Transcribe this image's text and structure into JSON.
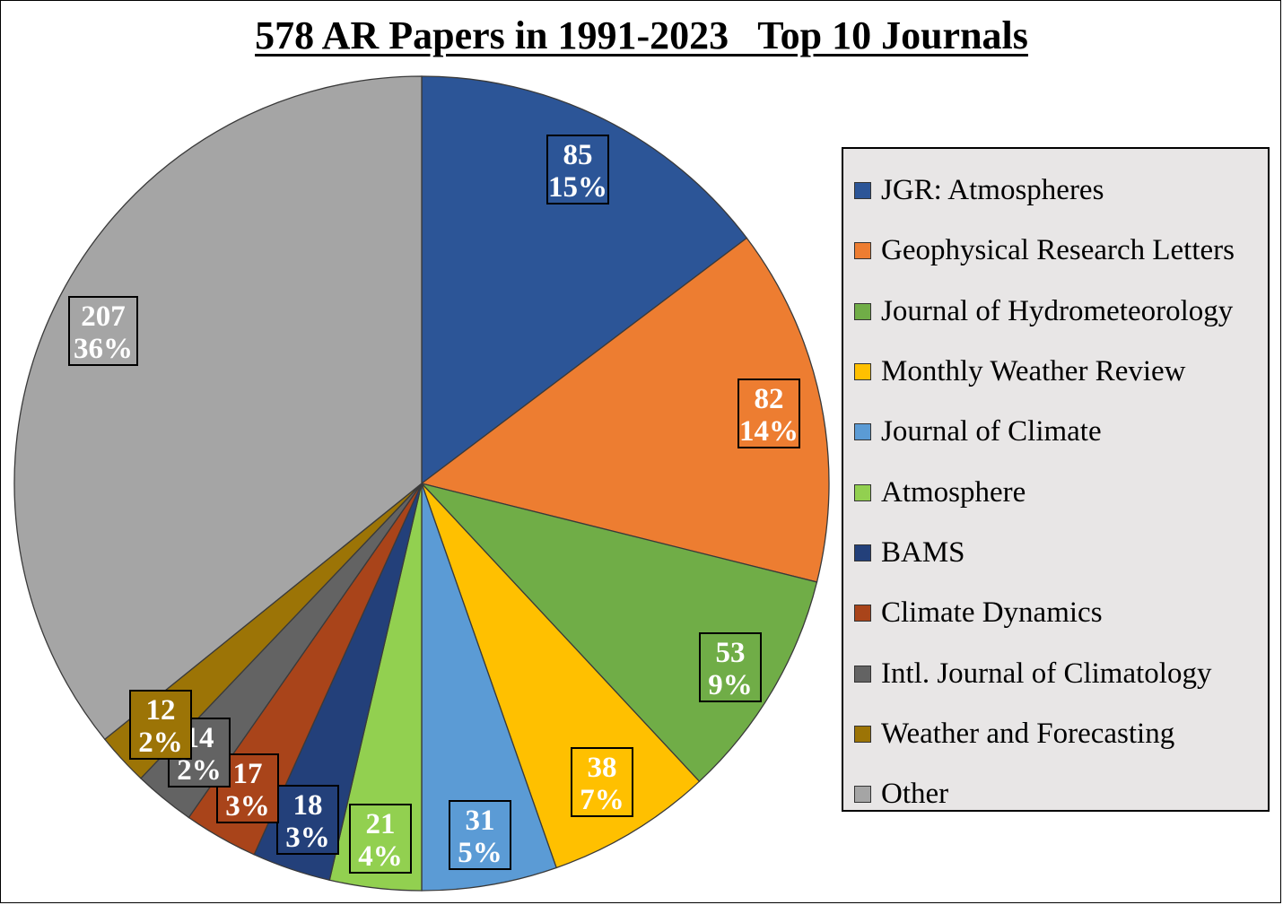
{
  "chart_data": {
    "type": "pie",
    "title": "578 AR Papers in 1991-2023   Top 10 Journals",
    "legend_position": "right",
    "slices": [
      {
        "label": "JGR: Atmospheres",
        "value": 85,
        "percent": "15%",
        "color": "#2c5597"
      },
      {
        "label": "Geophysical Research Letters",
        "value": 82,
        "percent": "14%",
        "color": "#ed7d31"
      },
      {
        "label": "Journal of Hydrometeorology",
        "value": 53,
        "percent": "9%",
        "color": "#70ad47"
      },
      {
        "label": "Monthly Weather Review",
        "value": 38,
        "percent": "7%",
        "color": "#ffc000"
      },
      {
        "label": "Journal of Climate",
        "value": 31,
        "percent": "5%",
        "color": "#5b9bd5"
      },
      {
        "label": "Atmosphere",
        "value": 21,
        "percent": "4%",
        "color": "#92d050"
      },
      {
        "label": "BAMS",
        "value": 18,
        "percent": "3%",
        "color": "#23407a"
      },
      {
        "label": "Climate Dynamics",
        "value": 17,
        "percent": "3%",
        "color": "#a9441a"
      },
      {
        "label": "Intl. Journal of Climatology",
        "value": 14,
        "percent": "2%",
        "color": "#636363"
      },
      {
        "label": "Weather and Forecasting",
        "value": 12,
        "percent": "2%",
        "color": "#9c7406"
      },
      {
        "label": "Other",
        "value": 207,
        "percent": "36%",
        "color": "#a5a5a5"
      }
    ]
  }
}
